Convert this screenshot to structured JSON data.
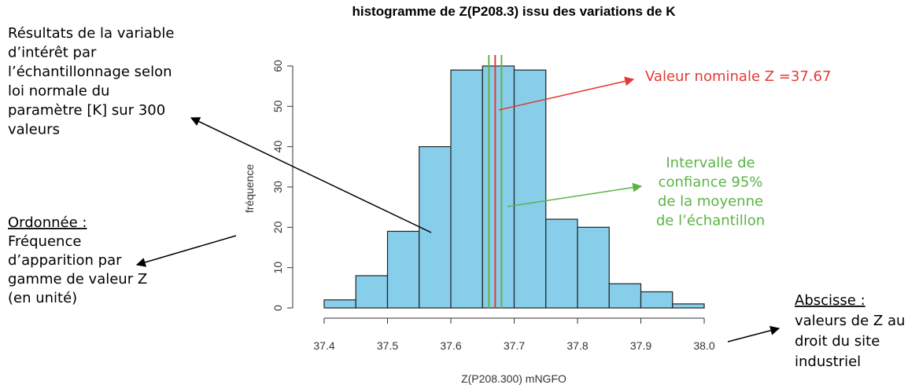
{
  "chart_data": {
    "type": "histogram",
    "title": "histogramme de Z(P208.3) issu des variations de K",
    "x_label": "Z(P208.300) mNGFO",
    "y_label": "fréquence",
    "bins": [
      37.4,
      37.45,
      37.5,
      37.55,
      37.6,
      37.65,
      37.7,
      37.75,
      37.8,
      37.85,
      37.9,
      37.95,
      38.0
    ],
    "values": [
      2,
      8,
      19,
      40,
      59,
      60,
      59,
      22,
      20,
      6,
      4,
      1
    ],
    "color": "#87ceeb",
    "xlim": [
      37.4,
      38.0
    ],
    "xticks": [
      37.4,
      37.5,
      37.6,
      37.7,
      37.8,
      37.9,
      {
        "value": 38.0,
        "label": "38.0"
      }
    ],
    "ylim": [
      0,
      60
    ],
    "yticks": [
      0,
      10,
      20,
      30,
      40,
      50,
      60
    ],
    "reference_lines": [
      {
        "value": 37.66,
        "color": "#6ab04c"
      },
      {
        "value": 37.68,
        "color": "#6ab04c"
      },
      {
        "value": 37.67,
        "color": "#e53935"
      }
    ],
    "annotations": [
      {
        "lines": [
          "Résultats de la variable",
          "d’intérêt par",
          "l’échantillonnage  selon",
          "loi normale du",
          "paramètre [K] sur 300",
          "valeurs"
        ],
        "color": "#000000"
      },
      {
        "lines": [
          "Ordonnée :",
          "Fréquence",
          "d’apparition par",
          "gamme de valeur Z",
          "(en unité)"
        ],
        "color": "#000000"
      },
      {
        "lines": [
          "Valeur nominale  Z =37.67"
        ],
        "color": "#e53935"
      },
      {
        "lines": [
          "Intervalle de",
          "confiance 95%",
          "de la moyenne",
          "de l’échantillon"
        ],
        "color": "#5bb445"
      },
      {
        "lines": [
          "Abscisse :",
          "valeurs de Z au",
          "droit du site",
          "industriel"
        ],
        "color": "#000000"
      }
    ]
  }
}
